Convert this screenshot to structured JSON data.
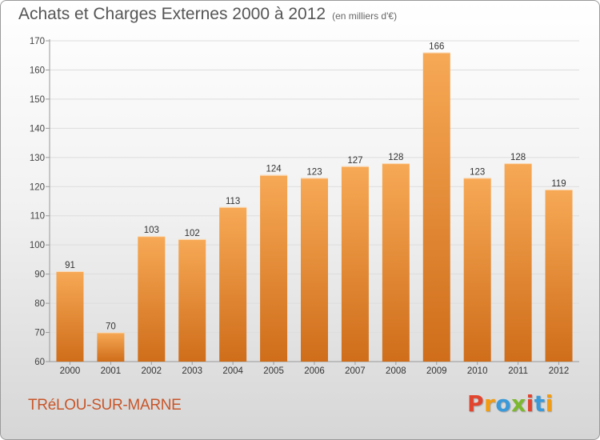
{
  "header": {
    "title": "Achats et Charges Externes 2000 à 2012",
    "subtitle": "(en milliers d'€)"
  },
  "footer": {
    "town": "TRéLOU-SUR-MARNE",
    "logo_text": "Proxiti"
  },
  "colors": {
    "bar_top": "#f7a955",
    "bar_bottom": "#cf6d1a",
    "town_text": "#c8562a",
    "logo_letters": [
      "#e2452f",
      "#f39c12",
      "#3a9ad9",
      "#7cb82f",
      "#e2452f",
      "#3a9ad9",
      "#f39c12"
    ]
  },
  "chart_data": {
    "type": "bar",
    "title": "Achats et Charges Externes 2000 à 2012",
    "subtitle": "(en milliers d'€)",
    "categories": [
      "2000",
      "2001",
      "2002",
      "2003",
      "2004",
      "2005",
      "2006",
      "2007",
      "2008",
      "2009",
      "2010",
      "2011",
      "2012"
    ],
    "values": [
      91,
      70,
      103,
      102,
      113,
      124,
      123,
      127,
      128,
      166,
      123,
      128,
      119
    ],
    "ylim": [
      60,
      170
    ],
    "yticks": [
      60,
      70,
      80,
      90,
      100,
      110,
      120,
      130,
      140,
      150,
      160,
      170
    ],
    "xlabel": "",
    "ylabel": "",
    "grid": true
  }
}
